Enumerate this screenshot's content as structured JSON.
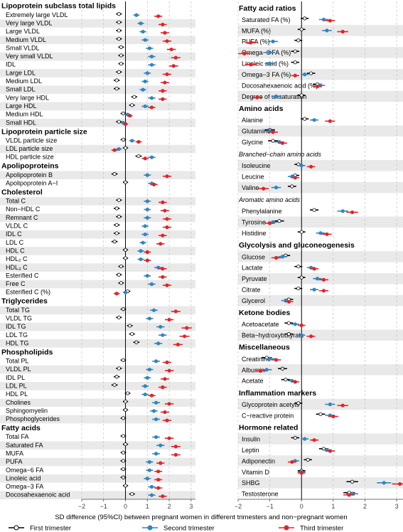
{
  "chart_data": {
    "type": "forest",
    "xlabel": "SD difference (95%CI) between pregnant women in different trimesters and non−pregnant women",
    "xlim": [
      -2,
      3.2
    ],
    "x_ticks": [
      "−2",
      "−1",
      "0",
      "1",
      "2",
      "3"
    ],
    "x_tick_values": [
      -2,
      -1,
      0,
      1,
      2,
      3
    ],
    "reference_line": 0,
    "grid": true,
    "legend_position": "bottom",
    "series": [
      {
        "name": "First trimester",
        "color": "#000000",
        "key": "t1"
      },
      {
        "name": "Second trimester",
        "color": "#2e86c1",
        "key": "t2"
      },
      {
        "name": "Third trimester",
        "color": "#e0242a",
        "key": "t3"
      }
    ],
    "panels": [
      {
        "sections": [
          {
            "title": "Lipoprotein subclass total lipids",
            "rows": [
              {
                "label": "Extremely large VLDL",
                "t1": -0.3,
                "t2": 0.5,
                "t3": 1.5
              },
              {
                "label": "Very large VLDL",
                "t1": -0.3,
                "t2": 0.7,
                "t3": 1.7
              },
              {
                "label": "Large VLDL",
                "t1": -0.3,
                "t2": 0.8,
                "t3": 1.8
              },
              {
                "label": "Medium VLDL",
                "t1": -0.3,
                "t2": 0.9,
                "t3": 1.9
              },
              {
                "label": "Small VLDL",
                "t1": -0.2,
                "t2": 1.1,
                "t3": 2.1
              },
              {
                "label": "Very small VLDL",
                "t1": -0.2,
                "t2": 1.2,
                "t3": 2.3
              },
              {
                "label": "IDL",
                "t1": -0.2,
                "t2": 1.2,
                "t3": 2.2
              },
              {
                "label": "Large LDL",
                "t1": -0.3,
                "t2": 1.0,
                "t3": 1.9
              },
              {
                "label": "Medium LDL",
                "t1": -0.4,
                "t2": 0.9,
                "t3": 1.8
              },
              {
                "label": "Small LDL",
                "t1": -0.4,
                "t2": 0.8,
                "t3": 1.7
              },
              {
                "label": "Very large HDL",
                "t1": 0.4,
                "t2": 1.2,
                "t3": 1.7
              },
              {
                "label": "Large HDL",
                "t1": 0.3,
                "t2": 0.9,
                "t3": 1.2
              },
              {
                "label": "Medium HDL",
                "t1": -0.1,
                "t2": 0.1,
                "t3": 0.2
              },
              {
                "label": "Small HDL",
                "t1": -0.3,
                "t2": -0.1,
                "t3": 0.0
              }
            ]
          },
          {
            "title": "Lipoprotein particle size",
            "rows": [
              {
                "label": "VLDL particle size",
                "t1": -0.1,
                "t2": 0.3,
                "t3": 0.6
              },
              {
                "label": "LDL particle size",
                "t1": 0.0,
                "t2": -0.3,
                "t3": -0.5
              },
              {
                "label": "HDL particle size",
                "t1": 0.6,
                "t2": 1.2,
                "t3": 0.9
              }
            ]
          },
          {
            "title": "Apolipoproteins",
            "rows": [
              {
                "label": "Apolipoprotein B",
                "t1": -0.5,
                "t2": 1.0,
                "t3": 1.9
              },
              {
                "label": "Apolipoprotein A−I",
                "t1": 0.0,
                "t2": 1.2,
                "t3": 1.3
              }
            ]
          },
          {
            "title": "Cholesterol",
            "rows": [
              {
                "label": "Total C",
                "t1": -0.3,
                "t2": 1.0,
                "t3": 1.7
              },
              {
                "label": "Non−HDL C",
                "t1": -0.4,
                "t2": 1.0,
                "t3": 1.8
              },
              {
                "label": "Remnant C",
                "t1": -0.3,
                "t2": 1.0,
                "t3": 1.9
              },
              {
                "label": "VLDL C",
                "t1": -0.4,
                "t2": 0.9,
                "t3": 1.9
              },
              {
                "label": "IDL C",
                "t1": -0.4,
                "t2": 0.9,
                "t3": 1.7
              },
              {
                "label": "LDL C",
                "t1": -0.5,
                "t2": 0.8,
                "t3": 1.6
              },
              {
                "label": "HDL C",
                "t1": 0.0,
                "t2": 0.7,
                "t3": 1.0
              },
              {
                "label": "HDL₂ C",
                "t1": 0.0,
                "t2": 0.7,
                "t3": 1.0
              },
              {
                "label": "HDL₃ C",
                "t1": -0.2,
                "t2": 1.5,
                "t3": 1.7
              },
              {
                "label": "Esterified C",
                "t1": -0.3,
                "t2": 1.0,
                "t3": 1.7
              },
              {
                "label": "Free C",
                "t1": -0.2,
                "t2": 1.2,
                "t3": 1.9
              },
              {
                "label": "Esterified C (%)",
                "t1": 0.1,
                "t2": 0.0,
                "t3": -0.4
              }
            ]
          },
          {
            "title": "Triglycerides",
            "rows": [
              {
                "label": "Total TG",
                "t1": -0.1,
                "t2": 1.3,
                "t3": 2.3
              },
              {
                "label": "VLDL TG",
                "t1": -0.3,
                "t2": 1.1,
                "t3": 2.0
              },
              {
                "label": "IDL TG",
                "t1": 0.2,
                "t2": 1.6,
                "t3": 2.8
              },
              {
                "label": "LDL TG",
                "t1": 0.3,
                "t2": 1.7,
                "t3": 2.7
              },
              {
                "label": "HDL TG",
                "t1": 0.5,
                "t2": 1.5,
                "t3": 2.4
              }
            ]
          },
          {
            "title": "Phospholipids",
            "rows": [
              {
                "label": "Total PL",
                "t1": -0.1,
                "t2": 1.4,
                "t3": 1.9
              },
              {
                "label": "VLDL PL",
                "t1": -0.3,
                "t2": 1.1,
                "t3": 2.0
              },
              {
                "label": "IDL PL",
                "t1": -0.4,
                "t2": 1.0,
                "t3": 1.8
              },
              {
                "label": "LDL PL",
                "t1": -0.5,
                "t2": 0.9,
                "t3": 1.7
              },
              {
                "label": "HDL PL",
                "t1": 0.1,
                "t2": 0.9,
                "t3": 1.2
              }
            ]
          },
          {
            "title": "",
            "rows": [
              {
                "label": "Cholines",
                "t1": 0.0,
                "t2": 1.4,
                "t3": 2.0
              },
              {
                "label": "Sphingomyelin",
                "t1": 0.0,
                "t2": 1.3,
                "t3": 1.8
              },
              {
                "label": "Phosphoglycerides",
                "t1": -0.1,
                "t2": 1.4,
                "t3": 1.9
              }
            ]
          },
          {
            "title": "Fatty acids",
            "rows": [
              {
                "label": "Total FA",
                "t1": -0.1,
                "t2": 1.4,
                "t3": 2.0
              },
              {
                "label": "Saturated FA",
                "t1": 0.0,
                "t2": 1.6,
                "t3": 2.3
              },
              {
                "label": "MUFA",
                "t1": -0.1,
                "t2": 1.4,
                "t3": 2.3
              },
              {
                "label": "PUFA",
                "t1": -0.1,
                "t2": 1.1,
                "t3": 1.6
              },
              {
                "label": "Omega−6 FA",
                "t1": -0.1,
                "t2": 1.1,
                "t3": 1.5
              },
              {
                "label": "Linoleic acid",
                "t1": -0.1,
                "t2": 1.0,
                "t3": 1.5
              },
              {
                "label": "Omega−3 FA",
                "t1": 0.0,
                "t2": 1.2,
                "t3": 1.5
              },
              {
                "label": "Docosahexaenoic acid",
                "t1": 0.3,
                "t2": 1.2,
                "t3": 1.7
              }
            ]
          }
        ]
      },
      {
        "sections": [
          {
            "title": "Fatty acid ratios",
            "rows": [
              {
                "label": "Saturated FA (%)",
                "t1": 0.1,
                "t2": 0.7,
                "t3": 0.9
              },
              {
                "label": "MUFA (%)",
                "t1": 0.0,
                "t2": 0.8,
                "t3": 1.3
              },
              {
                "label": "PUFA (%)",
                "t1": -0.1,
                "t2": -0.9,
                "t3": -1.6
              },
              {
                "label": "Omega−6 FA (%)",
                "t1": -0.2,
                "t2": -1.0,
                "t3": -1.8
              },
              {
                "label": "Linoleic acid (%)",
                "t1": -0.2,
                "t2": -1.0,
                "t3": -1.6
              },
              {
                "label": "Omega−3 FA (%)",
                "t1": 0.3,
                "t2": 0.1,
                "t3": -0.2
              },
              {
                "label": "Docosahexaenoic acid (%)",
                "t1": 0.5,
                "t2": 0.6,
                "t3": 0.5
              },
              {
                "label": "Degree of unsaturation",
                "t1": 0.0,
                "t2": -0.8,
                "t3": -1.4
              }
            ]
          },
          {
            "title": "Amino acids",
            "rows": [
              {
                "label": "Alanine",
                "t1": 0.1,
                "t2": 0.4,
                "t3": 0.9
              }
            ]
          },
          {
            "title": "",
            "rows": [
              {
                "label": "Glutamine",
                "t1": -1.0,
                "t2": -1.0,
                "t3": -0.9
              },
              {
                "label": "Glycine",
                "t1": -0.9,
                "t2": -0.7,
                "t3": -0.6
              }
            ]
          },
          {
            "subtitle": "Branched−chain amino acids",
            "rows": [
              {
                "label": "Isoleucine",
                "t1": -0.1,
                "t2": 0.0,
                "t3": 0.3
              },
              {
                "label": "Leucine",
                "t1": -0.2,
                "t2": -0.3,
                "t3": -0.2
              },
              {
                "label": "Valine",
                "t1": -0.3,
                "t2": -0.8,
                "t3": -1.2
              }
            ]
          },
          {
            "subtitle": "Aromatic amino acids",
            "rows": [
              {
                "label": "Phenylalanine",
                "t1": 0.4,
                "t2": 1.3,
                "t3": 1.6
              },
              {
                "label": "Tyrosine",
                "t1": -0.7,
                "t2": -0.9,
                "t3": -1.0
              },
              {
                "label": "Histidine",
                "t1": 0.0,
                "t2": 0.6,
                "t3": 0.8
              }
            ]
          },
          {
            "title": "Glycolysis and gluconeogenesis",
            "rows": [
              {
                "label": "Glucose",
                "t1": -0.5,
                "t2": -0.6,
                "t3": -0.8
              },
              {
                "label": "Lactate",
                "t1": -0.1,
                "t2": 0.3,
                "t3": 0.4
              },
              {
                "label": "Pyruvate",
                "t1": 0.0,
                "t2": 0.5,
                "t3": 0.7
              },
              {
                "label": "Citrate",
                "t1": -0.1,
                "t2": 0.4,
                "t3": 0.7
              },
              {
                "label": "Glycerol",
                "t1": -0.4,
                "t2": -0.5,
                "t3": -0.4
              }
            ]
          },
          {
            "title": "Ketone bodies",
            "rows": [
              {
                "label": "Acetoacetate",
                "t1": -0.4,
                "t2": -0.2,
                "t3": 0.0
              },
              {
                "label": "Beta−hydroxybutyrate",
                "t1": -0.4,
                "t2": 0.0,
                "t3": 0.3
              }
            ]
          },
          {
            "title": "Miscellaneous",
            "rows": [
              {
                "label": "Creatinine",
                "t1": -1.1,
                "t2": -1.0,
                "t3": -0.8
              },
              {
                "label": "Albumin",
                "t1": -0.6,
                "t2": -1.1,
                "t3": -1.3
              },
              {
                "label": "Acetate",
                "t1": -0.5,
                "t2": -0.3,
                "t3": -0.2
              }
            ]
          },
          {
            "title": "Inflammation markers",
            "rows": [
              {
                "label": "Glycoprotein acetyls",
                "t1": -0.1,
                "t2": 0.9,
                "t3": 1.3
              }
            ]
          },
          {
            "title": "",
            "rows": [
              {
                "label": "C−reactive protein",
                "t1": 0.6,
                "t2": 0.9,
                "t3": 1.0
              }
            ]
          },
          {
            "title": "Hormone related",
            "rows": [
              {
                "label": "Insulin",
                "t1": -0.2,
                "t2": 0.1,
                "t3": 0.4
              }
            ]
          },
          {
            "title": "",
            "rows": [
              {
                "label": "Leptin",
                "t1": 0.7,
                "t2": 0.8,
                "t3": 0.9
              },
              {
                "label": "Adiponectin",
                "t1": 0.2,
                "t2": -0.2,
                "t3": -0.3
              },
              {
                "label": "Vitamin D",
                "t1": 0.0,
                "t2": 0.0,
                "t3": 0.0
              },
              {
                "label": "SHBG",
                "t1": 1.6,
                "t2": 2.6,
                "t3": 3.1
              },
              {
                "label": "Testosterone",
                "t1": 1.5,
                "t2": 1.6,
                "t3": 1.5
              }
            ]
          }
        ]
      }
    ]
  }
}
